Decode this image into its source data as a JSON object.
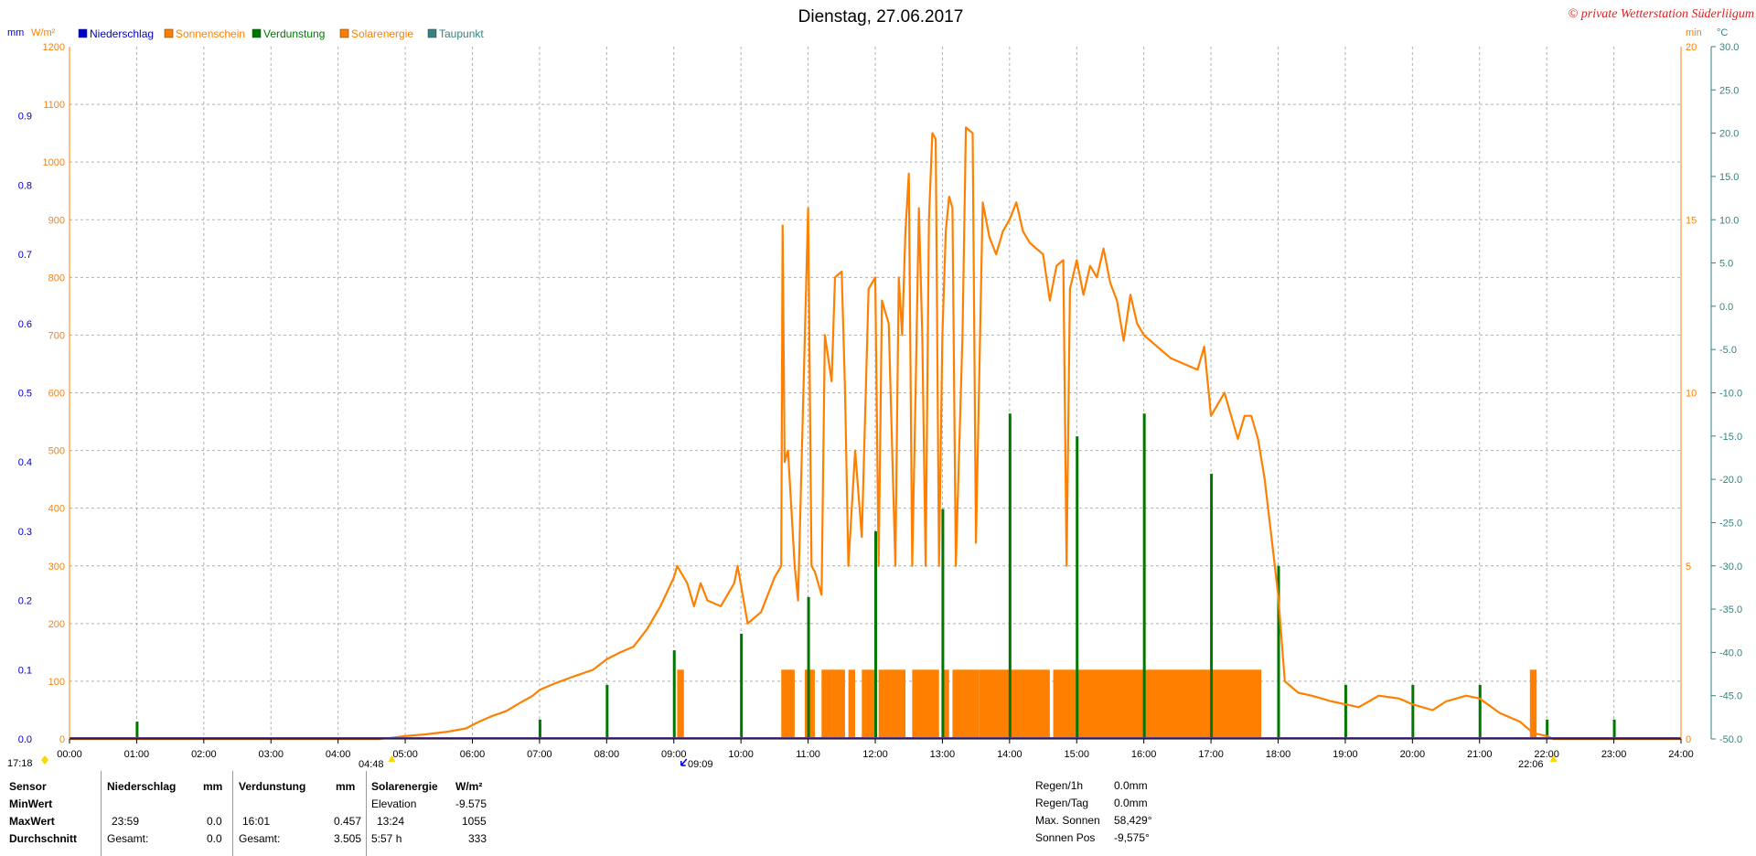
{
  "chart_data": {
    "type": "line",
    "title": "Dienstag, 27.06.2017",
    "credit": "© private Wetterstation Süderliigum",
    "left_axis_units": {
      "mm": "mm",
      "wm2": "W/m²"
    },
    "right_axis_units": {
      "min": "min",
      "celsius": "°C"
    },
    "legend": [
      {
        "name": "Niederschlag",
        "color": "#0000cc"
      },
      {
        "name": "Sonnenschein",
        "color": "#ff8000"
      },
      {
        "name": "Verdunstung",
        "color": "#007700"
      },
      {
        "name": "Solarenergie",
        "color": "#ff8000"
      },
      {
        "name": "Taupunkt",
        "color": "#3a8080"
      }
    ],
    "colors": {
      "niederschlag": "#0000cc",
      "sonnenschein": "#ff8000",
      "verdunstung": "#007700",
      "solarenergie": "#ff8000",
      "taupunkt": "#3a8080",
      "grid": "#b0b0b0"
    },
    "x_ticks": [
      "00:00",
      "01:00",
      "02:00",
      "03:00",
      "04:00",
      "05:00",
      "06:00",
      "07:00",
      "08:00",
      "09:00",
      "10:00",
      "11:00",
      "12:00",
      "13:00",
      "14:00",
      "15:00",
      "16:00",
      "17:00",
      "18:00",
      "19:00",
      "20:00",
      "21:00",
      "22:00",
      "23:00",
      "24:00"
    ],
    "xlim_hours": [
      0,
      24
    ],
    "axis_mm": {
      "ticks": [
        "0.0",
        "0.1",
        "0.2",
        "0.3",
        "0.4",
        "0.5",
        "0.6",
        "0.7",
        "0.8",
        "0.9"
      ],
      "ylim": [
        0,
        1.0
      ]
    },
    "axis_wm2": {
      "ticks": [
        "0",
        "100",
        "200",
        "300",
        "400",
        "500",
        "600",
        "700",
        "800",
        "900",
        "1000",
        "1100",
        "1200"
      ],
      "ylim": [
        0,
        1200
      ]
    },
    "axis_min": {
      "ticks": [
        "0",
        "5",
        "10",
        "15",
        "20"
      ],
      "ylim": [
        0,
        20
      ]
    },
    "axis_celsius": {
      "ticks": [
        "-50.0",
        "-45.0",
        "-40.0",
        "-35.0",
        "-30.0",
        "-25.0",
        "-20.0",
        "-15.0",
        "-10.0",
        "-5.0",
        "0.0",
        "5.0",
        "10.0",
        "15.0",
        "20.0",
        "25.0",
        "30.0"
      ],
      "ylim": [
        -50,
        30
      ]
    },
    "markers": {
      "sunrise_label": "04:48",
      "sunset_label": "22:06",
      "left_corner_label": "17:18",
      "marker_0909": "09:09",
      "sunrise_hour": 4.8,
      "sunset_hour": 22.1,
      "marker_hour": 9.15
    },
    "solarenergie": [
      [
        0,
        0
      ],
      [
        4.6,
        0
      ],
      [
        4.8,
        2
      ],
      [
        5.0,
        5
      ],
      [
        5.3,
        8
      ],
      [
        5.6,
        12
      ],
      [
        5.9,
        18
      ],
      [
        6.1,
        30
      ],
      [
        6.3,
        40
      ],
      [
        6.5,
        48
      ],
      [
        6.7,
        62
      ],
      [
        6.9,
        75
      ],
      [
        7.0,
        85
      ],
      [
        7.2,
        95
      ],
      [
        7.5,
        108
      ],
      [
        7.8,
        120
      ],
      [
        8.0,
        138
      ],
      [
        8.2,
        150
      ],
      [
        8.4,
        160
      ],
      [
        8.6,
        190
      ],
      [
        8.8,
        230
      ],
      [
        9.0,
        280
      ],
      [
        9.05,
        300
      ],
      [
        9.2,
        270
      ],
      [
        9.3,
        230
      ],
      [
        9.4,
        270
      ],
      [
        9.5,
        240
      ],
      [
        9.7,
        230
      ],
      [
        9.9,
        270
      ],
      [
        9.95,
        300
      ],
      [
        10.1,
        200
      ],
      [
        10.3,
        220
      ],
      [
        10.5,
        280
      ],
      [
        10.6,
        300
      ],
      [
        10.62,
        890
      ],
      [
        10.65,
        480
      ],
      [
        10.7,
        500
      ],
      [
        10.8,
        300
      ],
      [
        10.85,
        240
      ],
      [
        11.0,
        920
      ],
      [
        11.05,
        300
      ],
      [
        11.1,
        290
      ],
      [
        11.2,
        250
      ],
      [
        11.25,
        700
      ],
      [
        11.35,
        620
      ],
      [
        11.4,
        800
      ],
      [
        11.5,
        810
      ],
      [
        11.55,
        600
      ],
      [
        11.6,
        300
      ],
      [
        11.7,
        500
      ],
      [
        11.8,
        350
      ],
      [
        11.9,
        780
      ],
      [
        12.0,
        800
      ],
      [
        12.05,
        300
      ],
      [
        12.1,
        760
      ],
      [
        12.2,
        720
      ],
      [
        12.3,
        300
      ],
      [
        12.35,
        800
      ],
      [
        12.4,
        700
      ],
      [
        12.45,
        880
      ],
      [
        12.5,
        980
      ],
      [
        12.55,
        300
      ],
      [
        12.6,
        600
      ],
      [
        12.65,
        920
      ],
      [
        12.7,
        700
      ],
      [
        12.75,
        300
      ],
      [
        12.8,
        900
      ],
      [
        12.85,
        1050
      ],
      [
        12.9,
        1040
      ],
      [
        12.95,
        300
      ],
      [
        13.0,
        700
      ],
      [
        13.05,
        880
      ],
      [
        13.1,
        940
      ],
      [
        13.15,
        920
      ],
      [
        13.2,
        300
      ],
      [
        13.3,
        700
      ],
      [
        13.35,
        1060
      ],
      [
        13.45,
        1050
      ],
      [
        13.5,
        340
      ],
      [
        13.6,
        930
      ],
      [
        13.7,
        870
      ],
      [
        13.8,
        840
      ],
      [
        13.9,
        880
      ],
      [
        14.0,
        900
      ],
      [
        14.1,
        930
      ],
      [
        14.2,
        880
      ],
      [
        14.3,
        860
      ],
      [
        14.4,
        850
      ],
      [
        14.5,
        840
      ],
      [
        14.6,
        760
      ],
      [
        14.7,
        820
      ],
      [
        14.8,
        830
      ],
      [
        14.85,
        300
      ],
      [
        14.9,
        780
      ],
      [
        15.0,
        830
      ],
      [
        15.1,
        770
      ],
      [
        15.2,
        820
      ],
      [
        15.3,
        800
      ],
      [
        15.4,
        850
      ],
      [
        15.5,
        790
      ],
      [
        15.6,
        760
      ],
      [
        15.7,
        690
      ],
      [
        15.8,
        770
      ],
      [
        15.9,
        720
      ],
      [
        16.0,
        700
      ],
      [
        16.2,
        680
      ],
      [
        16.4,
        660
      ],
      [
        16.6,
        650
      ],
      [
        16.8,
        640
      ],
      [
        16.9,
        680
      ],
      [
        17.0,
        560
      ],
      [
        17.2,
        600
      ],
      [
        17.4,
        520
      ],
      [
        17.5,
        560
      ],
      [
        17.6,
        560
      ],
      [
        17.7,
        520
      ],
      [
        17.8,
        450
      ],
      [
        17.9,
        350
      ],
      [
        18.0,
        250
      ],
      [
        18.1,
        100
      ],
      [
        18.3,
        80
      ],
      [
        18.5,
        75
      ],
      [
        18.8,
        65
      ],
      [
        19.0,
        60
      ],
      [
        19.2,
        55
      ],
      [
        19.5,
        75
      ],
      [
        19.8,
        70
      ],
      [
        20.0,
        60
      ],
      [
        20.3,
        50
      ],
      [
        20.5,
        65
      ],
      [
        20.8,
        75
      ],
      [
        21.0,
        70
      ],
      [
        21.3,
        45
      ],
      [
        21.6,
        30
      ],
      [
        21.8,
        10
      ],
      [
        22.0,
        5
      ],
      [
        22.1,
        0
      ],
      [
        24,
        0
      ]
    ],
    "sonnenschein_blocks": [
      [
        9.05,
        9.15
      ],
      [
        10.6,
        10.8
      ],
      [
        10.95,
        11.1
      ],
      [
        11.2,
        11.55
      ],
      [
        11.6,
        11.7
      ],
      [
        11.8,
        12.0
      ],
      [
        12.05,
        12.45
      ],
      [
        12.55,
        12.95
      ],
      [
        13.0,
        13.1
      ],
      [
        13.15,
        13.55
      ],
      [
        13.55,
        14.6
      ],
      [
        14.65,
        17.75
      ],
      [
        21.75,
        21.85
      ]
    ],
    "sonnenschein_level_min": 2,
    "verdunstung_spikes": [
      [
        1.0,
        0.025
      ],
      [
        7.0,
        0.028
      ],
      [
        8.0,
        0.078
      ],
      [
        9.0,
        0.128
      ],
      [
        10.0,
        0.152
      ],
      [
        11.0,
        0.205
      ],
      [
        12.0,
        0.3
      ],
      [
        13.0,
        0.332
      ],
      [
        14.0,
        0.47
      ],
      [
        15.0,
        0.437
      ],
      [
        16.0,
        0.47
      ],
      [
        17.0,
        0.383
      ],
      [
        18.0,
        0.25
      ],
      [
        19.0,
        0.078
      ],
      [
        20.0,
        0.078
      ],
      [
        21.0,
        0.078
      ],
      [
        22.0,
        0.028
      ],
      [
        23.0,
        0.028
      ]
    ],
    "taupunkt_level_c": -50
  },
  "table": {
    "headers": {
      "sensor": "Sensor",
      "niederschlag": "Niederschlag",
      "niederschlag_unit": "mm",
      "verdunstung": "Verdunstung",
      "verdunstung_unit": "mm",
      "solarenergie": "Solarenergie",
      "solarenergie_unit": "W/m²"
    },
    "rows": [
      {
        "label": "MinWert",
        "n_time": "",
        "n_val": "",
        "v_time": "",
        "v_val": "",
        "s_label": "Elevation",
        "s_val": "-9.575"
      },
      {
        "label": "MaxWert",
        "n_time": "23:59",
        "n_val": "0.0",
        "v_time": "16:01",
        "v_val": "0.457",
        "s_label": "13:24",
        "s_val": "1055"
      },
      {
        "label": "Durchschnitt",
        "n_time": "Gesamt:",
        "n_val": "0.0",
        "v_time": "Gesamt:",
        "v_val": "3.505",
        "s_label": "5:57 h",
        "s_val": "333"
      }
    ]
  },
  "info": {
    "regen_1h_label": "Regen/1h",
    "regen_1h_val": "0.0mm",
    "regen_tag_label": "Regen/Tag",
    "regen_tag_val": "0.0mm",
    "max_sonnen_label": "Max. Sonnen",
    "max_sonnen_val": "58,429°",
    "sonnen_pos_label": "Sonnen Pos",
    "sonnen_pos_val": "-9,575°"
  }
}
